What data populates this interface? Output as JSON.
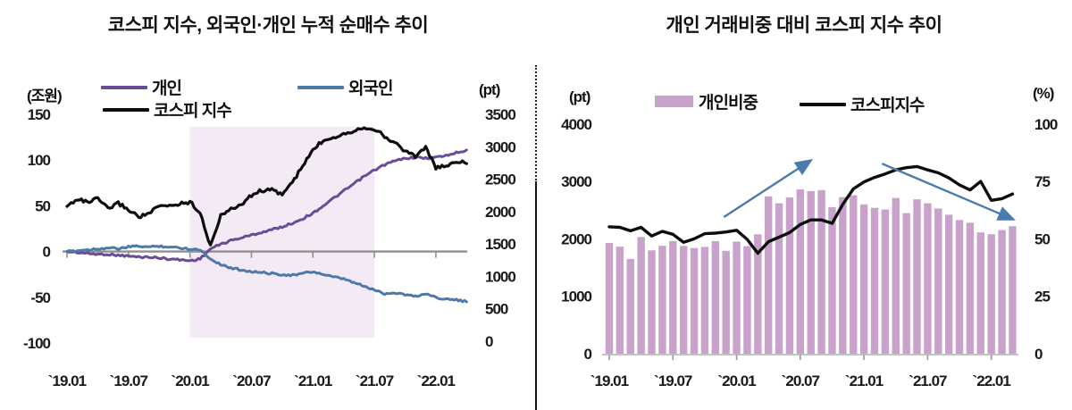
{
  "chart_data": [
    {
      "id": "net-purchase-chart",
      "type": "line",
      "title": "코스피 지수, 외국인·개인 누적 순매수 추이",
      "unit_left": "(조원)",
      "unit_right": "(pt)",
      "y_left": {
        "ticks": [
          150,
          100,
          50,
          0,
          -50,
          -100
        ],
        "max": 150,
        "min": -100
      },
      "y_right": {
        "ticks": [
          3500,
          3000,
          2500,
          2000,
          1500,
          1000,
          500,
          0
        ],
        "max": 3500,
        "min": 0
      },
      "x_ticks": [
        "`19.01",
        "`19.07",
        "`20.01",
        "`20.07",
        "`21.01",
        "`21.07",
        "`22.01"
      ],
      "months": 40,
      "shade": {
        "from_label": "`20.01",
        "to_label": "`21.07",
        "color": "#f4eaf5"
      },
      "zero_line_color": "#8f8f8f",
      "series": [
        {
          "name": "개인",
          "axis": "left",
          "color": "#6a4c97",
          "values": [
            0,
            -1,
            -2,
            -3,
            -3,
            -4,
            -5,
            -6,
            -6,
            -7,
            -8,
            -9,
            -10,
            -8,
            3,
            8,
            12,
            15,
            18,
            21,
            24,
            27,
            31,
            36,
            42,
            50,
            58,
            66,
            74,
            82,
            89,
            95,
            99,
            102,
            103,
            102,
            103,
            105,
            108,
            111
          ]
        },
        {
          "name": "외국인",
          "axis": "left",
          "color": "#4d7aa8",
          "values": [
            0,
            1,
            2,
            3,
            4,
            3,
            5,
            6,
            5,
            6,
            5,
            4,
            3,
            2,
            -8,
            -14,
            -18,
            -20,
            -22,
            -23,
            -24,
            -25,
            -26,
            -24,
            -22,
            -25,
            -28,
            -30,
            -34,
            -38,
            -42,
            -46,
            -45,
            -47,
            -49,
            -46,
            -50,
            -52,
            -53,
            -55
          ]
        },
        {
          "name": "코스피 지수",
          "axis": "right",
          "color": "#0d0d0d",
          "values": [
            2080,
            2200,
            2140,
            2200,
            2040,
            2130,
            2030,
            1920,
            1970,
            2080,
            2090,
            2120,
            2150,
            1990,
            1460,
            1950,
            2030,
            2110,
            2250,
            2330,
            2330,
            2270,
            2450,
            2700,
            2950,
            3100,
            3150,
            3200,
            3250,
            3300,
            3280,
            3150,
            3060,
            2940,
            2850,
            3000,
            2670,
            2700,
            2780,
            2740
          ]
        }
      ]
    },
    {
      "id": "trading-share-chart",
      "type": "bar+line",
      "title": "개인 거래비중 대비 코스피 지수 추이",
      "unit_left": "(pt)",
      "unit_right": "(%)",
      "y_left": {
        "ticks": [
          4000,
          3000,
          2000,
          1000,
          0
        ],
        "max": 4000,
        "min": 0
      },
      "y_right": {
        "ticks": [
          100,
          75,
          50,
          25,
          0
        ],
        "max": 100,
        "min": 0
      },
      "x_ticks": [
        "`19.01",
        "`19.07",
        "`20.01",
        "`20.07",
        "`21.01",
        "`21.07",
        "`22.01"
      ],
      "months": 39,
      "baseline_color": "#c4c4c4",
      "bars": {
        "name": "개인비중",
        "axis": "right",
        "color": "#c9a2cb",
        "values": [
          48.2,
          46.6,
          41.2,
          50.8,
          45.0,
          47.0,
          49.0,
          46.9,
          46.0,
          46.5,
          49.0,
          44.8,
          48.8,
          46.8,
          52.0,
          68.5,
          65.5,
          68.0,
          71.5,
          70.8,
          71.2,
          63.8,
          68.2,
          69.0,
          65.0,
          63.5,
          62.8,
          67.8,
          61.2,
          67.2,
          65.5,
          63.2,
          60.5,
          58.2,
          57.0,
          52.8,
          52.0,
          53.8,
          55.5
        ]
      },
      "line": {
        "name": "코스피지수",
        "axis": "left",
        "color": "#0d0d0d",
        "values": [
          2210,
          2200,
          2140,
          2200,
          2050,
          2130,
          2080,
          1940,
          2000,
          2090,
          2100,
          2120,
          2150,
          1990,
          1750,
          1950,
          2030,
          2110,
          2250,
          2330,
          2330,
          2270,
          2600,
          2870,
          2990,
          3070,
          3130,
          3200,
          3240,
          3260,
          3200,
          3150,
          3060,
          2940,
          2850,
          3000,
          2670,
          2700,
          2780
        ]
      },
      "arrows": [
        {
          "direction": "up",
          "color": "#4a7cab",
          "from": {
            "month": 11.8,
            "value_pt": 2380
          },
          "to": {
            "month": 20.2,
            "value_pt": 3390
          }
        },
        {
          "direction": "down",
          "color": "#4a7cab",
          "from": {
            "month": 26.7,
            "value_pt": 3310
          },
          "to": {
            "month": 39.3,
            "value_pt": 2320
          }
        }
      ]
    }
  ]
}
